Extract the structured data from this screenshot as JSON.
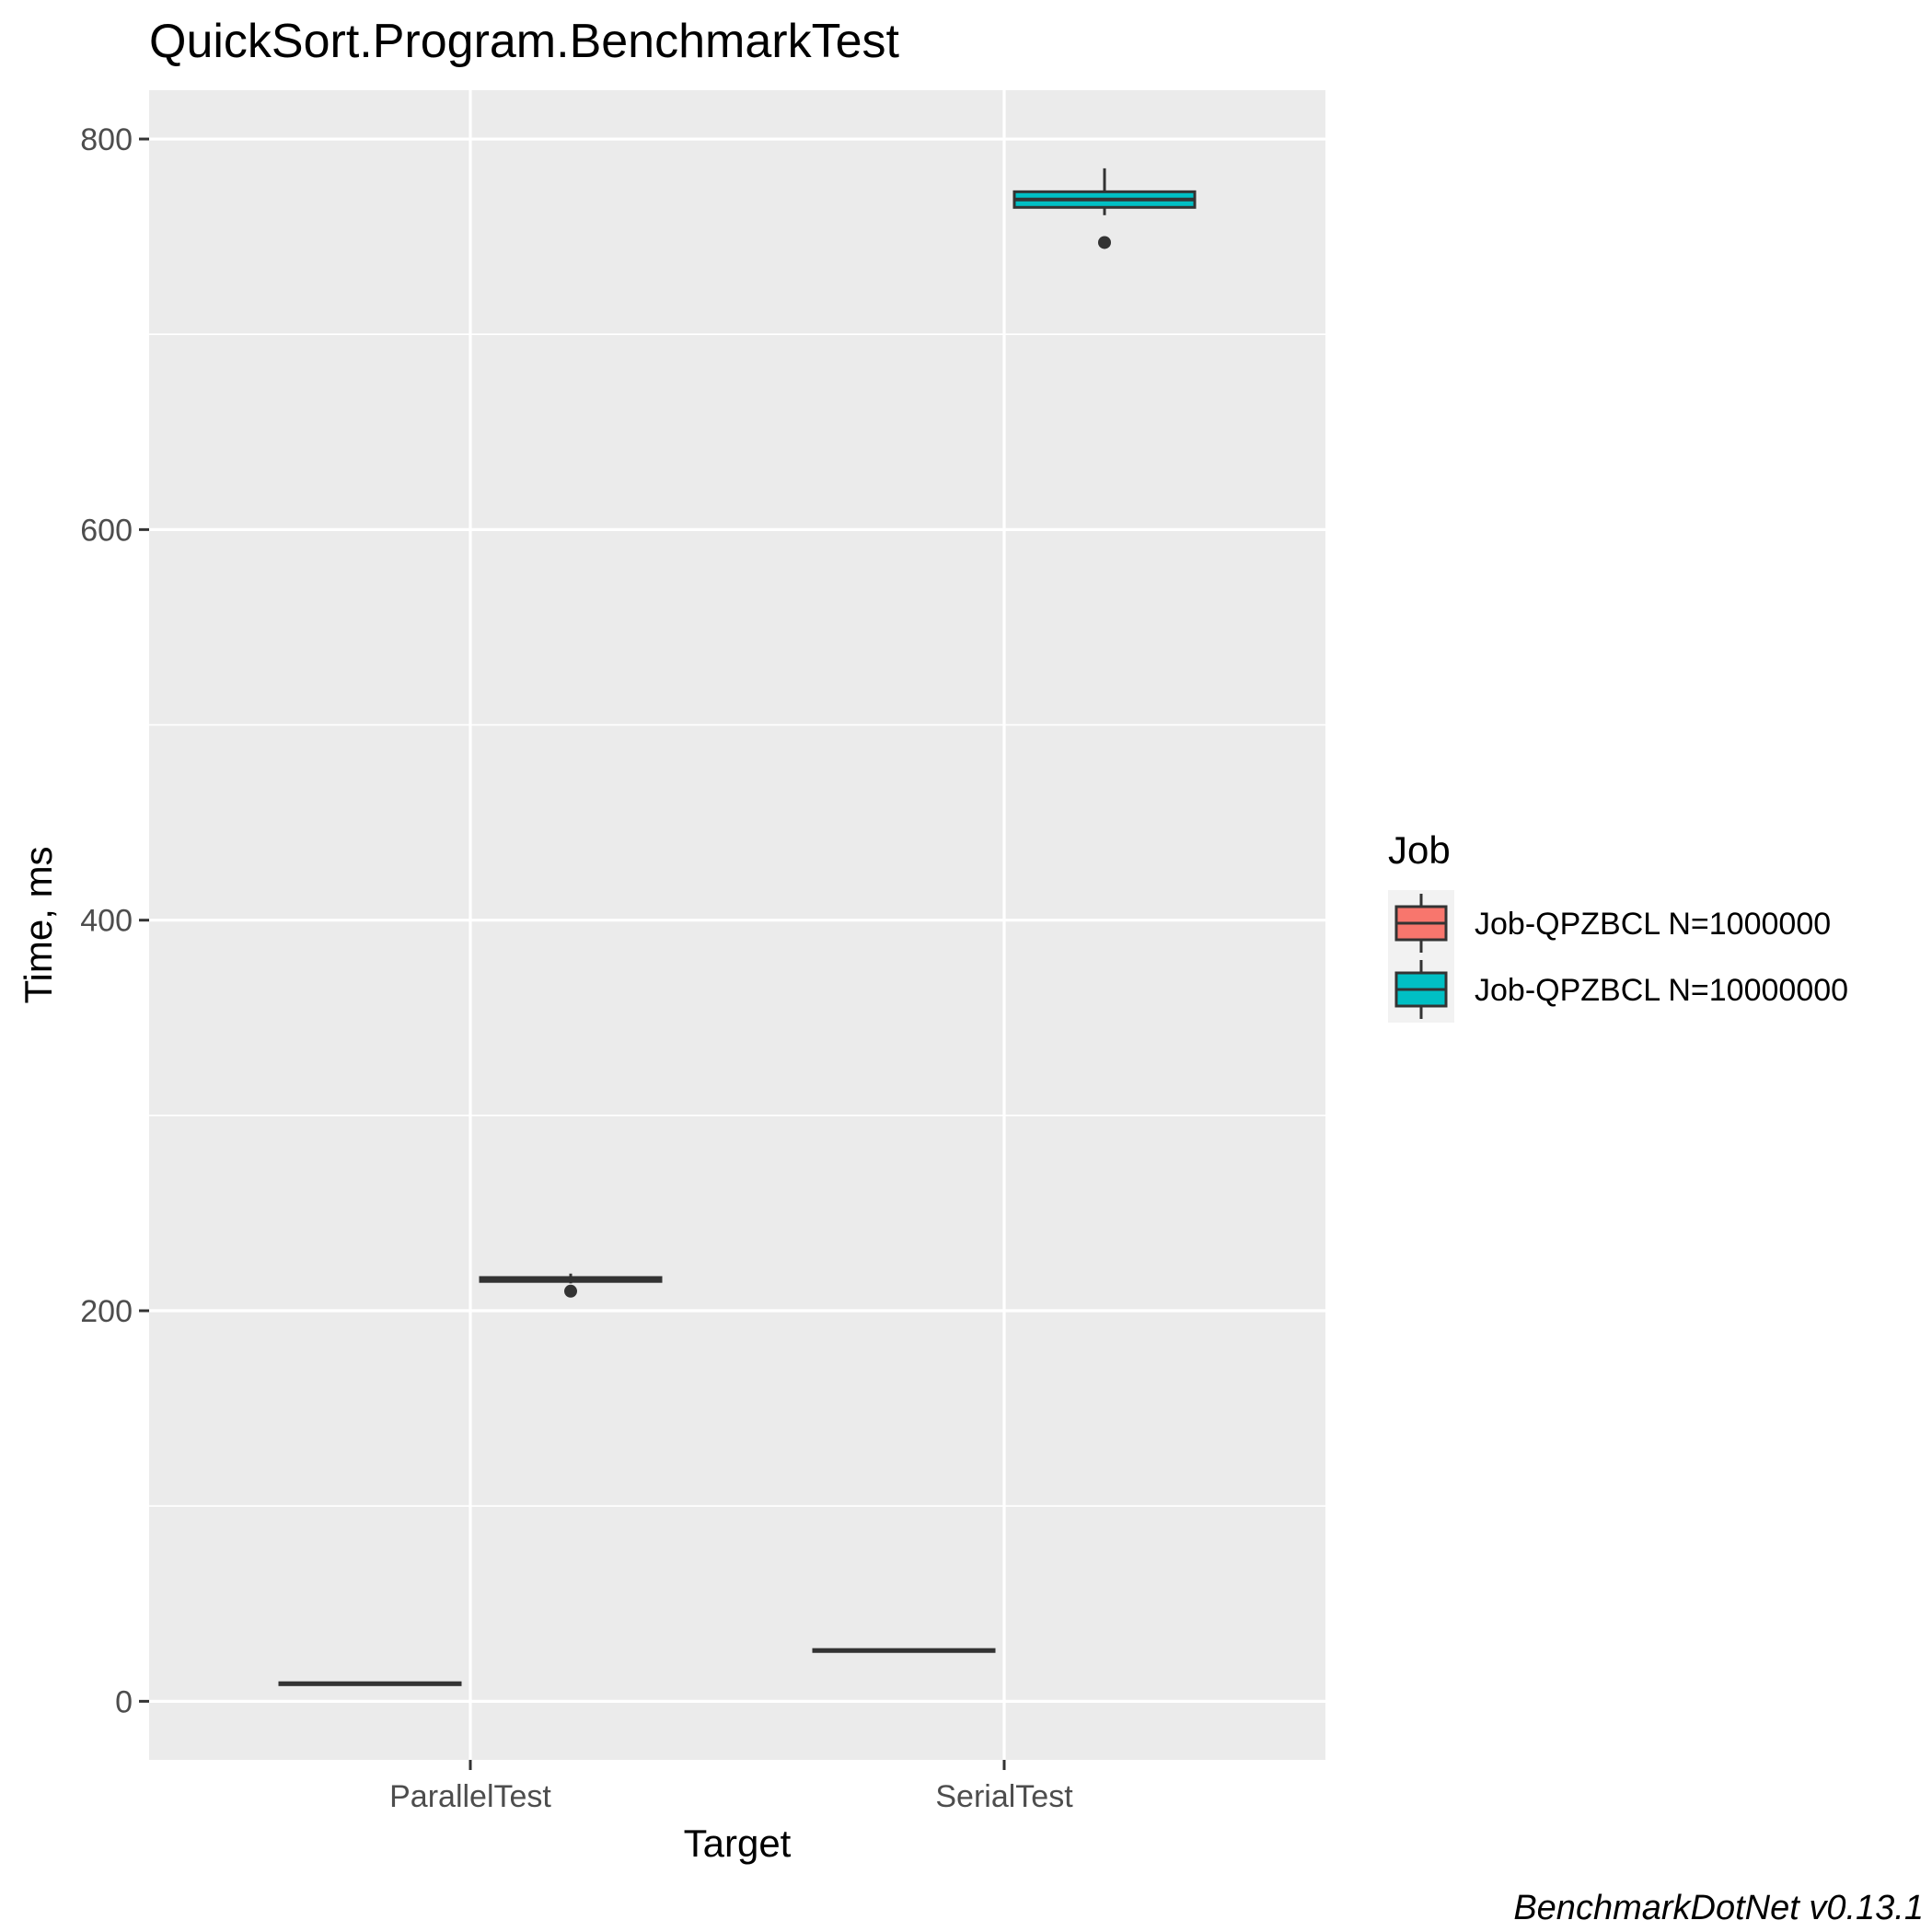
{
  "chart_data": {
    "type": "boxplot",
    "title": "QuickSort.Program.BenchmarkTest",
    "xlabel": "Target",
    "ylabel": "Time, ms",
    "categories": [
      "ParallelTest",
      "SerialTest"
    ],
    "ylim": [
      -30,
      825
    ],
    "yticks": [
      0,
      200,
      400,
      600,
      800
    ],
    "grid": true,
    "legend": {
      "title": "Job",
      "position": "right"
    },
    "caption": "BenchmarkDotNet v0.13.1",
    "series": [
      {
        "name": "Job-QPZBCL N=1000000",
        "color": "#F8766D",
        "boxes": [
          {
            "category": "ParallelTest",
            "whisker_low": 8.5,
            "q1": 8.5,
            "median": 9,
            "q3": 9.5,
            "whisker_high": 9.5,
            "outliers": []
          },
          {
            "category": "SerialTest",
            "whisker_low": 25.5,
            "q1": 25.5,
            "median": 26,
            "q3": 26.5,
            "whisker_high": 26.5,
            "outliers": []
          }
        ]
      },
      {
        "name": "Job-QPZBCL N=10000000",
        "color": "#00BFC4",
        "boxes": [
          {
            "category": "ParallelTest",
            "whisker_low": 214,
            "q1": 215,
            "median": 216,
            "q3": 217,
            "whisker_high": 219,
            "outliers": [
              210
            ]
          },
          {
            "category": "SerialTest",
            "whisker_low": 761,
            "q1": 765,
            "median": 769,
            "q3": 773,
            "whisker_high": 785,
            "outliers": [
              747
            ]
          }
        ]
      }
    ]
  }
}
